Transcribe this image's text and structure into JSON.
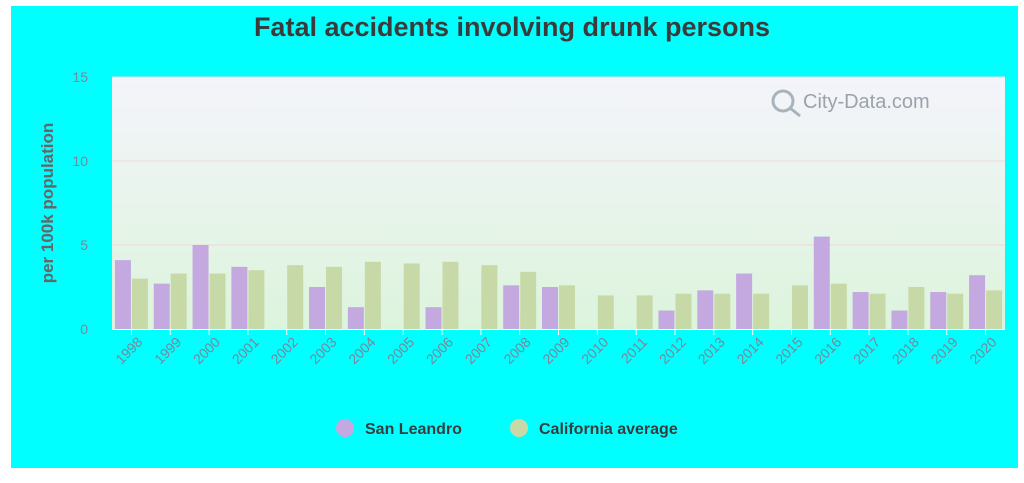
{
  "chart_data": {
    "type": "bar",
    "title": "Fatal accidents involving drunk persons",
    "ylabel": "per 100k population",
    "xlabel": "",
    "ylim": [
      0,
      15
    ],
    "yticks": [
      0,
      5,
      10,
      15
    ],
    "grid": true,
    "legend_position": "bottom",
    "categories": [
      "1998",
      "1999",
      "2000",
      "2001",
      "2002",
      "2003",
      "2004",
      "2005",
      "2006",
      "2007",
      "2008",
      "2009",
      "2010",
      "2011",
      "2012",
      "2013",
      "2014",
      "2015",
      "2016",
      "2017",
      "2018",
      "2019",
      "2020"
    ],
    "series": [
      {
        "name": "San Leandro",
        "color": "#c3a9e0",
        "values": [
          4.1,
          2.7,
          5.0,
          3.7,
          null,
          2.5,
          1.3,
          null,
          1.3,
          null,
          2.6,
          2.5,
          null,
          null,
          1.1,
          2.3,
          3.3,
          null,
          5.5,
          2.2,
          1.1,
          2.2,
          3.2
        ]
      },
      {
        "name": "California average",
        "color": "#c8d9a8",
        "values": [
          3.0,
          3.3,
          3.3,
          3.5,
          3.8,
          3.7,
          4.0,
          3.9,
          4.0,
          3.8,
          3.4,
          2.6,
          2.0,
          2.0,
          2.1,
          2.1,
          2.1,
          2.6,
          2.7,
          2.1,
          2.5,
          2.1,
          2.3
        ]
      }
    ]
  },
  "watermark": "City-Data.com",
  "colors": {
    "background": "#00ffff",
    "plot_top": "#f3f3fb",
    "plot_bottom": "#dcf3dc",
    "grid": "#efd7d7"
  }
}
